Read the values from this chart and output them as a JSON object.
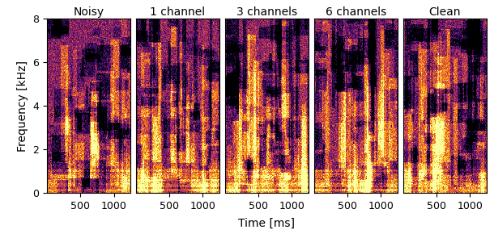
{
  "titles": [
    "Noisy",
    "1 channel",
    "3 channels",
    "6 channels",
    "Clean"
  ],
  "xlabel": "Time [ms]",
  "ylabel": "Frequency [kHz]",
  "ylim": [
    0,
    8
  ],
  "xlim": [
    0,
    1250
  ],
  "xticks": [
    500,
    1000
  ],
  "yticks": [
    0,
    2,
    4,
    6,
    8
  ],
  "colormap": "inferno",
  "n_panels": 5,
  "figsize": [
    6.1,
    2.9
  ],
  "dpi": 100,
  "freq_bins": 200,
  "time_bins": 130,
  "vmin": -2.5,
  "vmax": 1.0,
  "base_level": 0.55,
  "noise_std": 0.18
}
